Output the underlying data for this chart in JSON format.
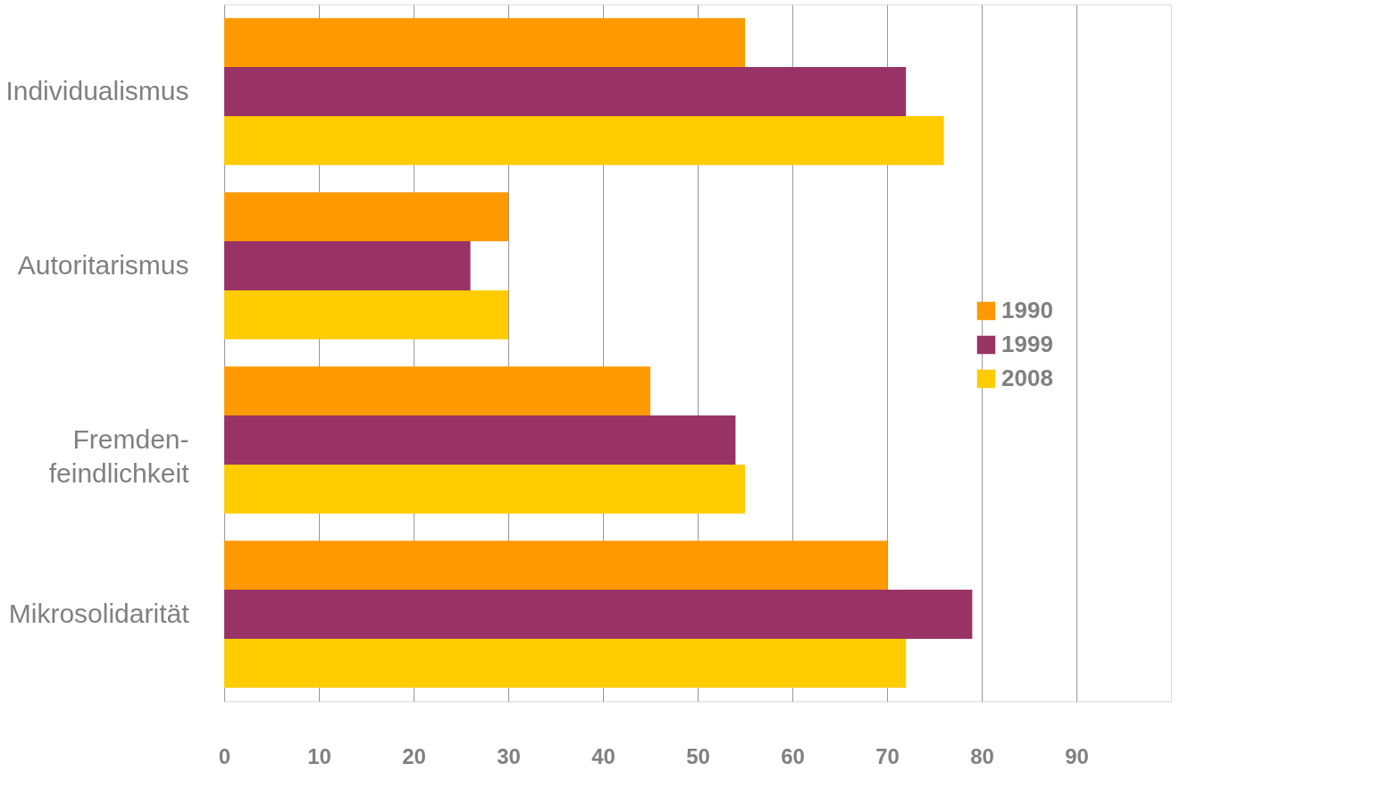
{
  "chart_data": {
    "type": "bar",
    "orientation": "horizontal",
    "categories": [
      "Individualismus",
      "Autoritarismus",
      "Fremden-\nfeindlichkeit",
      "Mikrosolidarität"
    ],
    "series": [
      {
        "name": "1990",
        "color": "#ff9900",
        "values": [
          55,
          30,
          45,
          70
        ]
      },
      {
        "name": "1999",
        "color": "#993366",
        "values": [
          72,
          26,
          54,
          79
        ]
      },
      {
        "name": "2008",
        "color": "#ffcc00",
        "values": [
          76,
          30,
          55,
          72
        ]
      }
    ],
    "xlim": [
      0,
      100
    ],
    "xticks": [
      0,
      10,
      20,
      30,
      40,
      50,
      60,
      70,
      80,
      90
    ],
    "grid": "x",
    "legend": "right"
  }
}
